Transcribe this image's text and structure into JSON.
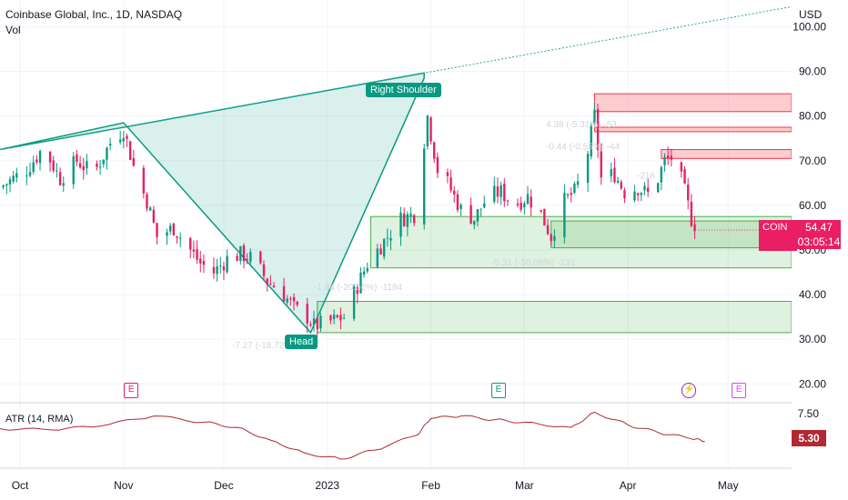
{
  "header": {
    "title": "Coinbase Global, Inc., 1D, NASDAQ",
    "volume_label": "Vol",
    "currency": "USD"
  },
  "patterns": {
    "right_shoulder": "Right Shoulder",
    "head": "Head"
  },
  "measurements": [
    {
      "text": "4.38 (-5.31%) -53",
      "y": 77.5
    },
    {
      "text": "-0.44 (-0.55%) -44",
      "y": 72.5
    },
    {
      "text": "-216",
      "y": 66.0
    },
    {
      "text": "-5.31 (-10.08%) -131",
      "y": 46.5
    },
    {
      "text": "-1.84 (-20.56%) -1184",
      "y": 41.0
    },
    {
      "text": "-7.27 (-18.72%) -77",
      "y": 28.0
    }
  ],
  "current": {
    "symbol": "COIN",
    "price": "54.47",
    "countdown": "03:05:14"
  },
  "events": [
    {
      "label": "E",
      "date": "2022-11-03",
      "color": "#e91e63"
    },
    {
      "label": "E",
      "date": "2023-02-21",
      "color": "#089981"
    },
    {
      "label": "⚡",
      "date": "2023-04-19",
      "color": "#9c27b0"
    },
    {
      "label": "E",
      "date": "2023-05-04",
      "color": "#e040fb"
    }
  ],
  "indicator": {
    "label": "ATR (14, RMA)",
    "value": "5.30",
    "ytick_labels": [
      "7.50"
    ],
    "color": "#b22833"
  },
  "chart_data": {
    "type": "candlestick",
    "x_range": [
      "2022-09-25",
      "2023-05-20"
    ],
    "ylim": [
      16,
      106
    ],
    "yticks": [
      20,
      30,
      40,
      50,
      60,
      70,
      80,
      90,
      100
    ],
    "ytick_labels": [
      "20.00",
      "30.00",
      "40.00",
      "50.00",
      "60.00",
      "70.00",
      "80.00",
      "90.00",
      "100.00"
    ],
    "xticks": [
      {
        "label": "Oct",
        "date": "2022-10-01"
      },
      {
        "label": "Nov",
        "date": "2022-11-01"
      },
      {
        "label": "Dec",
        "date": "2022-12-01"
      },
      {
        "label": "2023",
        "date": "2023-01-01"
      },
      {
        "label": "Feb",
        "date": "2023-02-01"
      },
      {
        "label": "Mar",
        "date": "2023-03-01"
      },
      {
        "label": "Apr",
        "date": "2023-04-01"
      },
      {
        "label": "May",
        "date": "2023-05-01"
      }
    ],
    "up_color": "#089981",
    "down_color": "#e91e63",
    "close_path": [
      [
        "2022-09-25",
        64
      ],
      [
        "2022-10-03",
        68
      ],
      [
        "2022-10-08",
        73
      ],
      [
        "2022-10-13",
        66
      ],
      [
        "2022-10-18",
        70
      ],
      [
        "2022-10-23",
        67
      ],
      [
        "2022-10-28",
        74
      ],
      [
        "2022-11-01",
        77
      ],
      [
        "2022-11-05",
        66
      ],
      [
        "2022-11-08",
        61
      ],
      [
        "2022-11-11",
        53
      ],
      [
        "2022-11-16",
        55
      ],
      [
        "2022-11-19",
        52
      ],
      [
        "2022-11-24",
        47
      ],
      [
        "2022-11-28",
        45
      ],
      [
        "2022-12-02",
        48
      ],
      [
        "2022-12-06",
        49
      ],
      [
        "2022-12-10",
        48
      ],
      [
        "2022-12-14",
        43
      ],
      [
        "2022-12-18",
        41
      ],
      [
        "2022-12-22",
        37
      ],
      [
        "2022-12-26",
        35
      ],
      [
        "2022-12-28",
        33
      ],
      [
        "2023-01-02",
        34
      ],
      [
        "2023-01-06",
        35
      ],
      [
        "2023-01-10",
        42
      ],
      [
        "2023-01-13",
        47
      ],
      [
        "2023-01-16",
        50
      ],
      [
        "2023-01-19",
        53
      ],
      [
        "2023-01-23",
        57
      ],
      [
        "2023-01-27",
        58
      ],
      [
        "2023-01-31",
        80
      ],
      [
        "2023-02-03",
        68
      ],
      [
        "2023-02-06",
        65
      ],
      [
        "2023-02-10",
        59
      ],
      [
        "2023-02-14",
        57
      ],
      [
        "2023-02-18",
        62
      ],
      [
        "2023-02-22",
        63
      ],
      [
        "2023-02-26",
        60
      ],
      [
        "2023-03-02",
        62
      ],
      [
        "2023-03-06",
        58
      ],
      [
        "2023-03-09",
        53
      ],
      [
        "2023-03-13",
        61
      ],
      [
        "2023-03-16",
        63
      ],
      [
        "2023-03-19",
        68
      ],
      [
        "2023-03-22",
        80
      ],
      [
        "2023-03-24",
        66
      ],
      [
        "2023-03-28",
        67
      ],
      [
        "2023-03-31",
        63
      ],
      [
        "2023-04-04",
        64
      ],
      [
        "2023-04-08",
        62
      ],
      [
        "2023-04-12",
        70
      ],
      [
        "2023-04-15",
        71
      ],
      [
        "2023-04-18",
        63
      ],
      [
        "2023-04-20",
        57
      ],
      [
        "2023-04-22",
        54.47
      ]
    ],
    "head_and_shoulders": [
      [
        "2022-11-01",
        78.5
      ],
      [
        "2022-12-27",
        31.5
      ],
      [
        "2023-01-30",
        88.5
      ]
    ],
    "neckline": [
      [
        "2022-09-25",
        72.5
      ],
      [
        "2023-05-20",
        104.5
      ]
    ],
    "supply_zones": [
      {
        "from": "2023-03-22",
        "to": "2023-05-20",
        "top": 85,
        "bottom": 81
      },
      {
        "from": "2023-03-22",
        "to": "2023-05-20",
        "top": 77.5,
        "bottom": 76.5
      },
      {
        "from": "2023-04-11",
        "to": "2023-05-20",
        "top": 72.5,
        "bottom": 70.5
      }
    ],
    "demand_zones": [
      {
        "from": "2023-01-14",
        "to": "2023-05-20",
        "top": 57.5,
        "bottom": 46
      },
      {
        "from": "2023-03-09",
        "to": "2023-05-20",
        "top": 56.5,
        "bottom": 50.5
      },
      {
        "from": "2022-12-29",
        "to": "2023-05-20",
        "top": 38.5,
        "bottom": 31.5
      }
    ],
    "atr": {
      "ylim": [
        3.4,
        8.2
      ],
      "points": [
        [
          "2022-09-25",
          6.3
        ],
        [
          "2022-10-10",
          6.2
        ],
        [
          "2022-10-25",
          6.5
        ],
        [
          "2022-11-10",
          7.3
        ],
        [
          "2022-11-25",
          6.8
        ],
        [
          "2022-12-05",
          6.4
        ],
        [
          "2022-12-15",
          5.4
        ],
        [
          "2022-12-25",
          4.4
        ],
        [
          "2023-01-05",
          3.9
        ],
        [
          "2023-01-15",
          4.6
        ],
        [
          "2023-01-28",
          5.8
        ],
        [
          "2023-02-01",
          7.1
        ],
        [
          "2023-02-10",
          7.3
        ],
        [
          "2023-02-20",
          7.0
        ],
        [
          "2023-03-01",
          6.8
        ],
        [
          "2023-03-15",
          6.4
        ],
        [
          "2023-03-22",
          7.6
        ],
        [
          "2023-04-01",
          6.6
        ],
        [
          "2023-04-10",
          6.0
        ],
        [
          "2023-04-20",
          5.5
        ],
        [
          "2023-04-24",
          5.3
        ]
      ]
    }
  }
}
